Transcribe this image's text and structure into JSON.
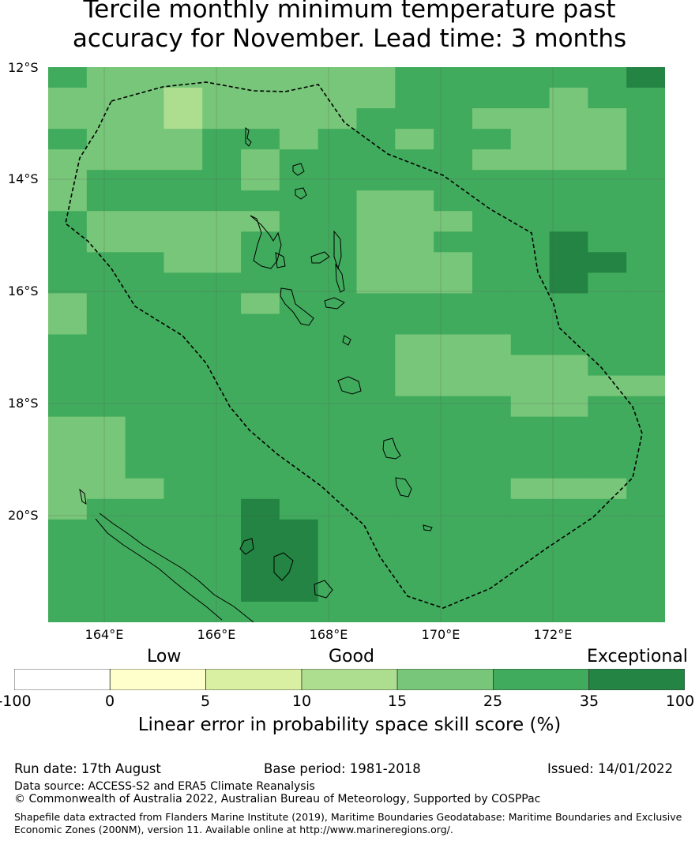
{
  "title_line1": "Tercile monthly minimum temperature past",
  "title_line2": "accuracy for November. Lead time: 3 months",
  "lat_labels": [
    "12°S",
    "14°S",
    "16°S",
    "18°S",
    "20°S"
  ],
  "lon_labels": [
    "164°E",
    "166°E",
    "168°E",
    "170°E",
    "172°E"
  ],
  "colors": {
    "c0": "#ffffff",
    "c1": "#ffffcc",
    "c2": "#d9f0a3",
    "c3": "#addd8e",
    "c4": "#78c679",
    "c5": "#41ab5d",
    "c6": "#238443",
    "coast": "#000000",
    "boundary": "#000000",
    "grid": "#555555"
  },
  "grid_rows": [
    "5444444445555556",
    "4443444445555455",
    "4443444455544445",
    "5444554554554445",
    "4444545555544445",
    "4555545555555555",
    "4555555544555555",
    "5444445544455555",
    "5444455544555655",
    "5554455544455665",
    "5555555544455655",
    "4555545555555555",
    "4555555555555555",
    "5555555554445555",
    "5555555554444455",
    "5555555554444444",
    "5555555555554455",
    "4455555555555555",
    "4455555555555555",
    "4455555555555555",
    "4445555555554445",
    "4555565555555555",
    "5555566555555555",
    "5555566555555555",
    "5555566555555555",
    "5555566555555555",
    "5555555555555555"
  ],
  "legend": {
    "low": "Low",
    "good": "Good",
    "exceptional": "Exceptional",
    "ticks": [
      "-100",
      "0",
      "5",
      "10",
      "15",
      "25",
      "35",
      "100"
    ],
    "label": "Linear error in probability space skill score (%)"
  },
  "footer": {
    "run_date": "Run date: 17th August",
    "base_period": "Base period: 1981-2018",
    "issued": "Issued: 14/01/2022",
    "data_source": "Data source: ACCESS-S2 and ERA5 Climate Reanalysis",
    "copyright": "© Commonwealth of Australia 2022, Australian Bureau of Meteorology, Supported by COSPPac",
    "shapefile_line1": "Shapefile data extracted from Flanders Marine Institute (2019), Maritime Boundaries Geodatabase: Maritime Boundaries and Exclusive",
    "shapefile_line2": "Economic Zones (200NM), version 11. Available online at http://www.marineregions.org/."
  }
}
